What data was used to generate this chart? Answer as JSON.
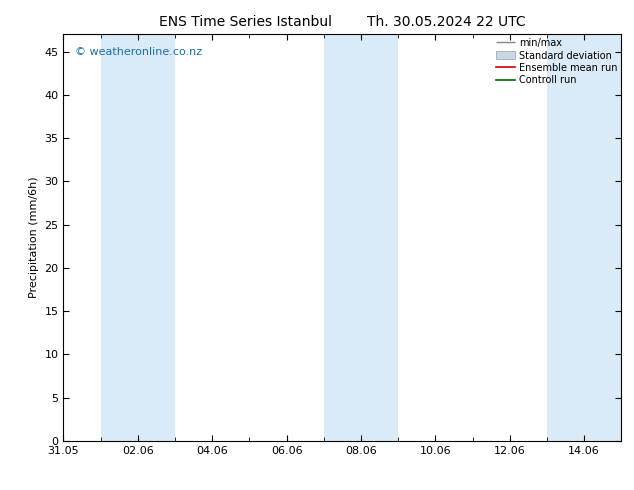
{
  "title_left": "ENS Time Series Istanbul",
  "title_right": "Th. 30.05.2024 22 UTC",
  "ylabel": "Precipitation (mm/6h)",
  "background_color": "#ffffff",
  "plot_bg_color": "#ffffff",
  "watermark": "© weatheronline.co.nz",
  "watermark_color": "#1a6fa8",
  "ylim": [
    0,
    47
  ],
  "yticks": [
    0,
    5,
    10,
    15,
    20,
    25,
    30,
    35,
    40,
    45
  ],
  "x_min": 0,
  "x_max": 15,
  "xtick_labels": [
    "31.05",
    "02.06",
    "04.06",
    "06.06",
    "08.06",
    "10.06",
    "12.06",
    "14.06"
  ],
  "xtick_positions": [
    0,
    2,
    4,
    6,
    8,
    10,
    12,
    14
  ],
  "shaded_bands": [
    {
      "xstart": 1,
      "xend": 3
    },
    {
      "xstart": 7,
      "xend": 9
    },
    {
      "xstart": 13,
      "xend": 15
    }
  ],
  "shaded_color": "#daeaf7",
  "legend_labels": [
    "min/max",
    "Standard deviation",
    "Ensemble mean run",
    "Controll run"
  ],
  "tick_fontsize": 8,
  "label_fontsize": 8,
  "title_fontsize": 10,
  "watermark_fontsize": 8
}
